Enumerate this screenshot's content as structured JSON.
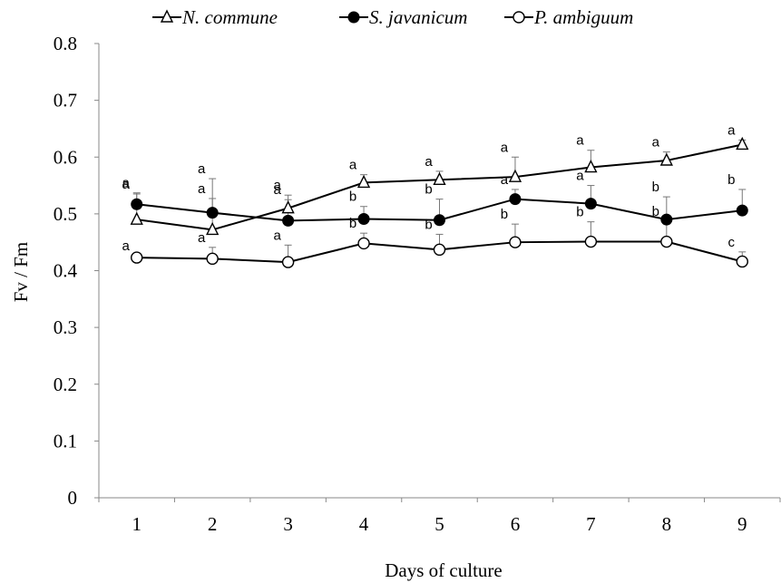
{
  "chart_data": {
    "type": "line",
    "xlabel": "Days of culture",
    "ylabel": "Fv / Fm",
    "x": [
      1,
      2,
      3,
      4,
      5,
      6,
      7,
      8,
      9
    ],
    "ylim": [
      0,
      0.8
    ],
    "yticks": [
      "0",
      "0.1",
      "0.2",
      "0.3",
      "0.4",
      "0.5",
      "0.6",
      "0.7",
      "0.8"
    ],
    "grid": false,
    "legend_position": "top",
    "series": [
      {
        "name": "N. commune",
        "marker": "triangle-open",
        "values": [
          0.49,
          0.472,
          0.51,
          0.555,
          0.56,
          0.565,
          0.582,
          0.594,
          0.622
        ],
        "errors": [
          0.045,
          0.055,
          0.015,
          0.014,
          0.015,
          0.035,
          0.03,
          0.015,
          0.008
        ],
        "letters": [
          "a",
          "a",
          "a",
          "a",
          "a",
          "a",
          "a",
          "a",
          "a"
        ]
      },
      {
        "name": "S. javanicum",
        "marker": "circle-filled",
        "values": [
          0.517,
          0.502,
          0.488,
          0.491,
          0.489,
          0.526,
          0.518,
          0.49,
          0.506
        ],
        "errors": [
          0.02,
          0.06,
          0.045,
          0.022,
          0.037,
          0.017,
          0.032,
          0.04,
          0.037
        ],
        "letters": [
          "a",
          "a",
          "a",
          "b",
          "b",
          "a",
          "a",
          "b",
          "b"
        ]
      },
      {
        "name": "P. ambiguum",
        "marker": "circle-open",
        "values": [
          0.423,
          0.421,
          0.415,
          0.448,
          0.437,
          0.45,
          0.451,
          0.451,
          0.416
        ],
        "errors": [
          0.003,
          0.02,
          0.03,
          0.018,
          0.027,
          0.032,
          0.035,
          0.036,
          0.017
        ],
        "letters": [
          "a",
          "a",
          "a",
          "b",
          "b",
          "b",
          "b",
          "b",
          "c"
        ]
      }
    ]
  }
}
